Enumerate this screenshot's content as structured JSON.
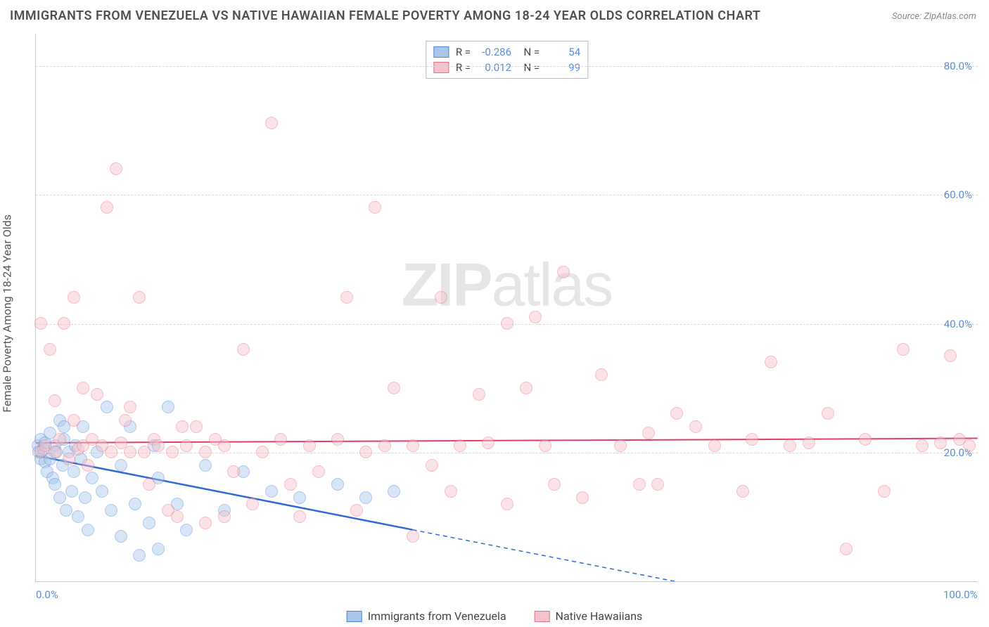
{
  "title": "IMMIGRANTS FROM VENEZUELA VS NATIVE HAWAIIAN FEMALE POVERTY AMONG 18-24 YEAR OLDS CORRELATION CHART",
  "source": "Source: ZipAtlas.com",
  "ylabel": "Female Poverty Among 18-24 Year Olds",
  "watermark_a": "ZIP",
  "watermark_b": "atlas",
  "chart": {
    "type": "scatter",
    "xlim": [
      0,
      100
    ],
    "ylim": [
      0,
      85
    ],
    "xticks": [
      {
        "v": 0,
        "label": "0.0%"
      },
      {
        "v": 100,
        "label": "100.0%"
      }
    ],
    "yticks": [
      {
        "v": 20,
        "label": "20.0%"
      },
      {
        "v": 40,
        "label": "40.0%"
      },
      {
        "v": 60,
        "label": "60.0%"
      },
      {
        "v": 80,
        "label": "80.0%"
      }
    ],
    "grid_color": "#d8d8d8",
    "background_color": "#ffffff",
    "point_radius": 9,
    "point_opacity": 0.45,
    "series": [
      {
        "name": "Immigrants from Venezuela",
        "color_fill": "#a8c6ec",
        "color_stroke": "#4f86d9",
        "R": "-0.286",
        "N": "54",
        "trend": {
          "x1": 0,
          "y1": 19.5,
          "x2": 40,
          "y2": 8.0,
          "color": "#2f6bd0",
          "width": 2.5,
          "extend_dash_to_x": 80
        },
        "points": [
          [
            0.2,
            21
          ],
          [
            0.3,
            20
          ],
          [
            0.5,
            22
          ],
          [
            0.5,
            19
          ],
          [
            0.8,
            20.5
          ],
          [
            1,
            21.5
          ],
          [
            1,
            18.5
          ],
          [
            1.2,
            17
          ],
          [
            1.5,
            23
          ],
          [
            1.5,
            19
          ],
          [
            1.8,
            16
          ],
          [
            2,
            21
          ],
          [
            2,
            15
          ],
          [
            2.2,
            20
          ],
          [
            2.5,
            25
          ],
          [
            2.5,
            13
          ],
          [
            2.8,
            18
          ],
          [
            3,
            22
          ],
          [
            3,
            24
          ],
          [
            3.2,
            11
          ],
          [
            3.5,
            20
          ],
          [
            3.8,
            14
          ],
          [
            4,
            17
          ],
          [
            4.2,
            21
          ],
          [
            4.5,
            10
          ],
          [
            4.8,
            19
          ],
          [
            5,
            24
          ],
          [
            5.2,
            13
          ],
          [
            5.5,
            8
          ],
          [
            6,
            16
          ],
          [
            6.5,
            20
          ],
          [
            7,
            14
          ],
          [
            7.5,
            27
          ],
          [
            8,
            11
          ],
          [
            9,
            7
          ],
          [
            9,
            18
          ],
          [
            10,
            24
          ],
          [
            10.5,
            12
          ],
          [
            11,
            4
          ],
          [
            12,
            9
          ],
          [
            12.5,
            21
          ],
          [
            13,
            16
          ],
          [
            13,
            5
          ],
          [
            14,
            27
          ],
          [
            15,
            12
          ],
          [
            16,
            8
          ],
          [
            18,
            18
          ],
          [
            20,
            11
          ],
          [
            22,
            17
          ],
          [
            25,
            14
          ],
          [
            28,
            13
          ],
          [
            32,
            15
          ],
          [
            35,
            13
          ],
          [
            38,
            14
          ]
        ]
      },
      {
        "name": "Native Hawaiians",
        "color_fill": "#f5c1ca",
        "color_stroke": "#e86f8a",
        "R": "0.012",
        "N": "99",
        "trend": {
          "x1": 0,
          "y1": 21.5,
          "x2": 100,
          "y2": 22.2,
          "color": "#e23f66",
          "width": 2
        },
        "points": [
          [
            0.5,
            20
          ],
          [
            0.5,
            40
          ],
          [
            1,
            21
          ],
          [
            1.5,
            36
          ],
          [
            2,
            20
          ],
          [
            2,
            28
          ],
          [
            2.5,
            22
          ],
          [
            3,
            40
          ],
          [
            3.5,
            19
          ],
          [
            4,
            44
          ],
          [
            4,
            25
          ],
          [
            4.5,
            20.5
          ],
          [
            5,
            21
          ],
          [
            5,
            30
          ],
          [
            5.5,
            18
          ],
          [
            6,
            22
          ],
          [
            6.5,
            29
          ],
          [
            7,
            21
          ],
          [
            7.5,
            58
          ],
          [
            8,
            20
          ],
          [
            8.5,
            64
          ],
          [
            9,
            21.5
          ],
          [
            9.5,
            25
          ],
          [
            10,
            20
          ],
          [
            10,
            27
          ],
          [
            11,
            44
          ],
          [
            11.5,
            20
          ],
          [
            12,
            15
          ],
          [
            12.5,
            22
          ],
          [
            13,
            21
          ],
          [
            14,
            11
          ],
          [
            14.5,
            20
          ],
          [
            15,
            10
          ],
          [
            15.5,
            24
          ],
          [
            16,
            21
          ],
          [
            17,
            24
          ],
          [
            18,
            9
          ],
          [
            18,
            20
          ],
          [
            19,
            22
          ],
          [
            20,
            10
          ],
          [
            20,
            21
          ],
          [
            21,
            17
          ],
          [
            22,
            36
          ],
          [
            23,
            12
          ],
          [
            24,
            20
          ],
          [
            25,
            71
          ],
          [
            26,
            22
          ],
          [
            27,
            15
          ],
          [
            28,
            10
          ],
          [
            29,
            21
          ],
          [
            30,
            17
          ],
          [
            32,
            22
          ],
          [
            33,
            44
          ],
          [
            34,
            11
          ],
          [
            35,
            20
          ],
          [
            36,
            58
          ],
          [
            37,
            21
          ],
          [
            38,
            30
          ],
          [
            40,
            7
          ],
          [
            40,
            21
          ],
          [
            42,
            18
          ],
          [
            43,
            44
          ],
          [
            44,
            14
          ],
          [
            45,
            21
          ],
          [
            47,
            29
          ],
          [
            48,
            21.5
          ],
          [
            50,
            40
          ],
          [
            50,
            12
          ],
          [
            52,
            30
          ],
          [
            53,
            41
          ],
          [
            54,
            21
          ],
          [
            55,
            15
          ],
          [
            56,
            48
          ],
          [
            58,
            13
          ],
          [
            60,
            32
          ],
          [
            62,
            21
          ],
          [
            64,
            15
          ],
          [
            65,
            23
          ],
          [
            66,
            15
          ],
          [
            68,
            26
          ],
          [
            70,
            24
          ],
          [
            72,
            21
          ],
          [
            75,
            14
          ],
          [
            76,
            22
          ],
          [
            78,
            34
          ],
          [
            80,
            21
          ],
          [
            82,
            21.5
          ],
          [
            84,
            26
          ],
          [
            86,
            5
          ],
          [
            88,
            22
          ],
          [
            90,
            14
          ],
          [
            92,
            36
          ],
          [
            94,
            21
          ],
          [
            96,
            21.5
          ],
          [
            97,
            35
          ],
          [
            98,
            22
          ],
          [
            99,
            21
          ]
        ]
      }
    ],
    "legend_bottom": [
      {
        "label": "Immigrants from Venezuela",
        "fill": "#a8c6ec",
        "stroke": "#4f86d9"
      },
      {
        "label": "Native Hawaiians",
        "fill": "#f5c1ca",
        "stroke": "#e86f8a"
      }
    ]
  }
}
